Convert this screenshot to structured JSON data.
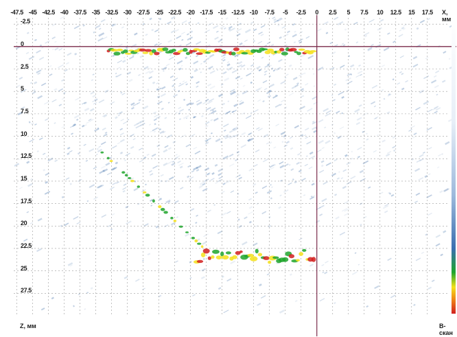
{
  "window": {
    "x_axis_unit": "X, мм",
    "y_axis_unit": "Z, мм",
    "mode_label": "B-скан"
  },
  "axes": {
    "x_ticks": [
      "-47.5",
      "-45",
      "-42.5",
      "-40",
      "-37.5",
      "-35",
      "-32.5",
      "-30",
      "-27.5",
      "-25",
      "-22.5",
      "-20",
      "-17.5",
      "-15",
      "-12.5",
      "-10",
      "-7.5",
      "-5",
      "-2.5",
      "0",
      "2.5",
      "5",
      "7.5",
      "10",
      "12.5",
      "15",
      "17.5"
    ],
    "y_ticks": [
      "-2.5",
      "0",
      "2.5",
      "5",
      "7.5",
      "10",
      "12.5",
      "15",
      "17.5",
      "20",
      "22.5",
      "25",
      "27.5"
    ],
    "x_range_mm": [
      -48,
      21
    ],
    "y_range_mm": [
      -3.2,
      30
    ],
    "cursor_x_mm": 0,
    "cursor_y_mm": 0
  },
  "palette": {
    "background": "#ffffff",
    "speckle": "#3e6ea8",
    "grid": "#9a9a9a",
    "cursor": "#7a2a4a",
    "echo_low": "#1ea52c",
    "echo_mid": "#f4e11a",
    "echo_high": "#d21f1f"
  }
}
